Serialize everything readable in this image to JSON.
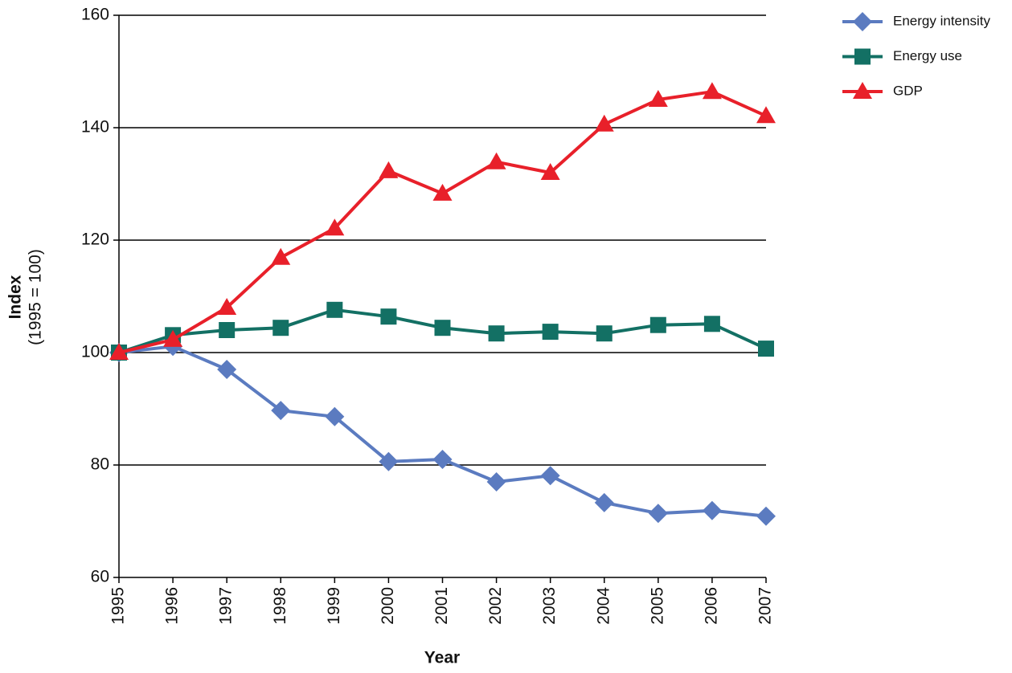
{
  "chart_data": {
    "type": "line",
    "x_label": "Year",
    "y_label": "Index",
    "y_label_note": "(1995 = 100)",
    "x": [
      1995,
      1996,
      1997,
      1998,
      1999,
      2000,
      2001,
      2002,
      2003,
      2004,
      2005,
      2006,
      2007
    ],
    "series": [
      {
        "name": "Energy intensity",
        "color": "#5b7bc0",
        "marker": "diamond",
        "values": [
          100,
          101.1,
          97,
          89.7,
          88.6,
          80.6,
          81,
          77,
          78.1,
          73.3,
          71.4,
          71.9,
          70.9
        ]
      },
      {
        "name": "Energy use",
        "color": "#137064",
        "marker": "square",
        "values": [
          100,
          103.1,
          104,
          104.4,
          107.6,
          106.4,
          104.4,
          103.4,
          103.7,
          103.4,
          104.9,
          105.1,
          100.7
        ]
      },
      {
        "name": "GDP",
        "color": "#e8202a",
        "marker": "triangle",
        "values": [
          100,
          102.3,
          108,
          116.9,
          122.1,
          132.3,
          128.3,
          133.9,
          132,
          140.6,
          145,
          146.4,
          142.1
        ]
      }
    ],
    "xlim": [
      1995,
      2007
    ],
    "xticks": [
      1995,
      1996,
      1997,
      1998,
      1999,
      2000,
      2001,
      2002,
      2003,
      2004,
      2005,
      2006,
      2007
    ],
    "ylim": [
      60,
      160
    ],
    "yticks": [
      60,
      80,
      100,
      120,
      140,
      160
    ],
    "grid": true,
    "legend": "top-right"
  }
}
